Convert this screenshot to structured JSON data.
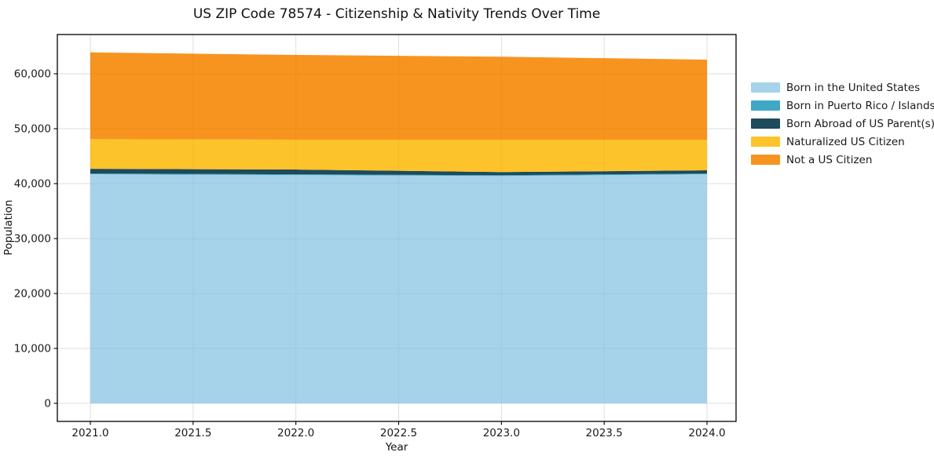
{
  "figure": {
    "title": "US ZIP Code 78574 - Citizenship & Nativity Trends Over Time",
    "xlabel": "Year",
    "ylabel": "Population"
  },
  "chart_data": {
    "type": "area",
    "stacked": true,
    "title": "US ZIP Code 78574 - Citizenship & Nativity Trends Over Time",
    "xlabel": "Year",
    "ylabel": "Population",
    "grid": true,
    "legend_position": "right-outside",
    "x": [
      2021,
      2022,
      2023,
      2024
    ],
    "xticks": [
      "2021.0",
      "2021.5",
      "2022.0",
      "2022.5",
      "2023.0",
      "2023.5",
      "2024.0"
    ],
    "xtick_values": [
      2021.0,
      2021.5,
      2022.0,
      2022.5,
      2023.0,
      2023.5,
      2024.0
    ],
    "yticks": [
      "0",
      "10,000",
      "20,000",
      "30,000",
      "40,000",
      "50,000",
      "60,000"
    ],
    "ytick_values": [
      0,
      10000,
      20000,
      30000,
      40000,
      50000,
      60000
    ],
    "xlim": [
      2020.85,
      2024.15
    ],
    "ylim": [
      -3290,
      67140
    ],
    "series": [
      {
        "name": "Born in the United States",
        "color": "#a6d3e9",
        "values": [
          41700,
          41550,
          41400,
          41700
        ]
      },
      {
        "name": "Born in Puerto Rico / Islands",
        "color": "#3fa8c5",
        "values": [
          140,
          140,
          140,
          140
        ]
      },
      {
        "name": "Born Abroad of US Parent(s)",
        "color": "#1e4a5c",
        "values": [
          860,
          880,
          560,
          580
        ]
      },
      {
        "name": "Naturalized US Citizen",
        "color": "#fdc32b",
        "values": [
          5400,
          5430,
          5900,
          5580
        ]
      },
      {
        "name": "Not a US Citizen",
        "color": "#f7941f",
        "values": [
          15800,
          15430,
          15100,
          14570
        ]
      }
    ],
    "stacked_totals": [
      63900,
      63430,
      63100,
      62570
    ]
  },
  "style": {
    "grid_color": "#e9e9e9",
    "frame_color": "#000000",
    "tick_text_color": "#1a1a1a"
  }
}
